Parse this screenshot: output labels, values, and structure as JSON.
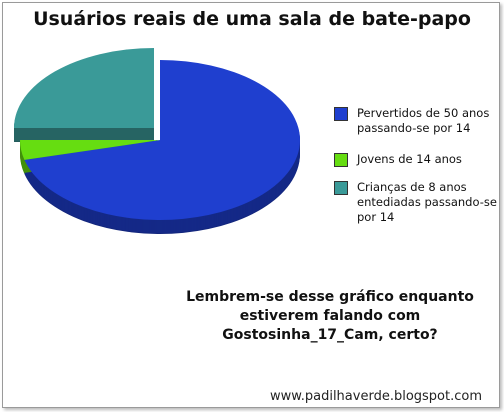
{
  "chart_data": {
    "type": "pie",
    "title": "Usuários reais de uma sala de bate-papo",
    "categories": [
      "Pervertidos de 50 anos passando-se por 14",
      "Jovens de 14 anos",
      "Crianças de 8 anos entediadas passando-se por 14"
    ],
    "values": [
      71,
      4,
      25
    ],
    "colors": [
      "#1f3fcf",
      "#66dd11",
      "#3a9a98"
    ],
    "caption": "Lembrem-se desse gráfico enquanto estiverem falando com Gostosinha_17_Cam, certo?",
    "watermark": "www.padilhaverde.blogspot.com"
  }
}
